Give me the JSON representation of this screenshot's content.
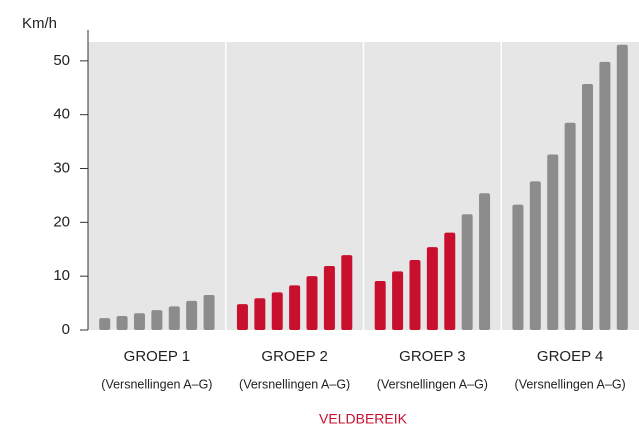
{
  "chart_data": {
    "type": "bar",
    "y_label": "Km/h",
    "annotation": "VELDBEREIK",
    "ylim": [
      0,
      53.5
    ],
    "yticks": [
      0,
      10,
      20,
      30,
      40,
      50
    ],
    "groups": [
      {
        "name": "GROEP 1",
        "sublabel": "(Versnellingen A–G)",
        "values": [
          2.2,
          2.6,
          3.1,
          3.7,
          4.4,
          5.4,
          6.5
        ],
        "colors": [
          "#8c8c8c",
          "#8c8c8c",
          "#8c8c8c",
          "#8c8c8c",
          "#8c8c8c",
          "#8c8c8c",
          "#8c8c8c"
        ]
      },
      {
        "name": "GROEP 2",
        "sublabel": "(Versnellingen A–G)",
        "values": [
          4.8,
          5.9,
          7.0,
          8.3,
          10.0,
          11.9,
          13.9
        ],
        "colors": [
          "#c8102e",
          "#c8102e",
          "#c8102e",
          "#c8102e",
          "#c8102e",
          "#c8102e",
          "#c8102e"
        ]
      },
      {
        "name": "GROEP 3",
        "sublabel": "(Versnellingen A–G)",
        "values": [
          9.1,
          10.9,
          13.0,
          15.4,
          18.1,
          21.5,
          25.4
        ],
        "colors": [
          "#c8102e",
          "#c8102e",
          "#c8102e",
          "#c8102e",
          "#c8102e",
          "#8c8c8c",
          "#8c8c8c"
        ]
      },
      {
        "name": "GROEP 4",
        "sublabel": "(Versnellingen A–G)",
        "values": [
          23.3,
          27.6,
          32.6,
          38.5,
          45.7,
          49.8,
          53.0
        ],
        "colors": [
          "#8c8c8c",
          "#8c8c8c",
          "#8c8c8c",
          "#8c8c8c",
          "#8c8c8c",
          "#8c8c8c",
          "#8c8c8c"
        ]
      }
    ]
  }
}
